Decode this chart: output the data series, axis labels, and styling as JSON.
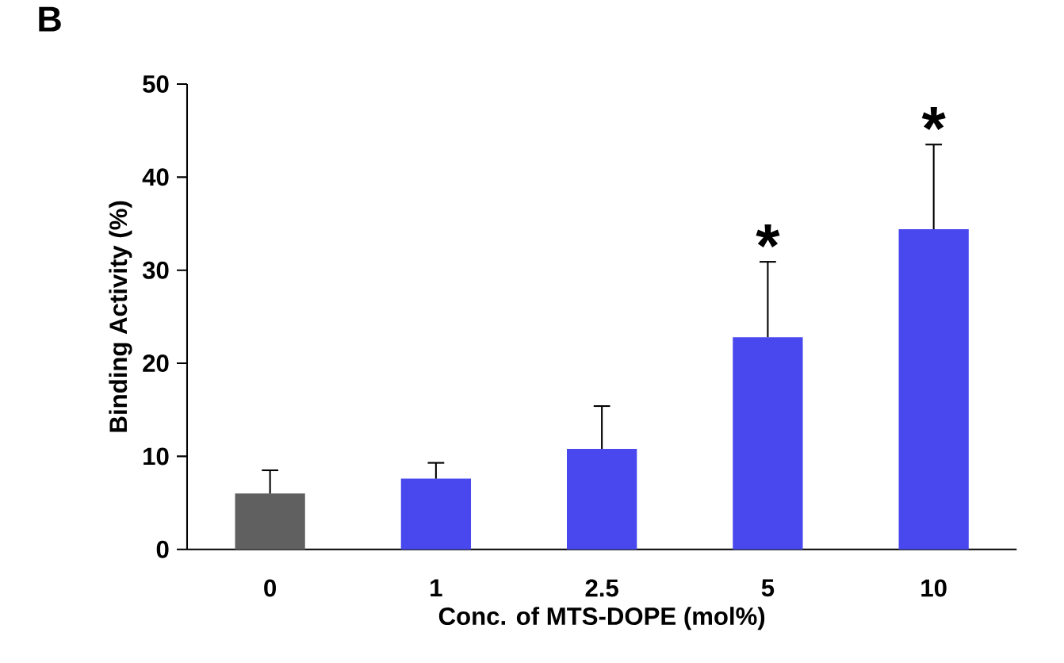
{
  "chart_data": {
    "type": "bar",
    "title": "B",
    "xlabel": "Conc. of MTS-DOPE (mol%)",
    "ylabel": "Binding Activity (%)",
    "categories": [
      "0",
      "1",
      "2.5",
      "5",
      "10"
    ],
    "values": [
      6.0,
      7.6,
      10.8,
      22.8,
      34.4
    ],
    "colors": [
      "#606060",
      "#4848ee",
      "#4848ee",
      "#4848ee",
      "#4848ee"
    ],
    "errors": [
      [
        6.0,
        8.5
      ],
      [
        7.6,
        9.3
      ],
      [
        10.8,
        15.4
      ],
      [
        22.8,
        30.9
      ],
      [
        34.4,
        43.5
      ]
    ],
    "ylim": [
      0,
      50
    ],
    "yticks": [
      0,
      10,
      20,
      30,
      40,
      50
    ],
    "annotations": [
      {
        "text": "*",
        "x": "5",
        "y": 30.9
      },
      {
        "text": "*",
        "x": "10",
        "y": 43.5
      }
    ],
    "grid": false
  }
}
